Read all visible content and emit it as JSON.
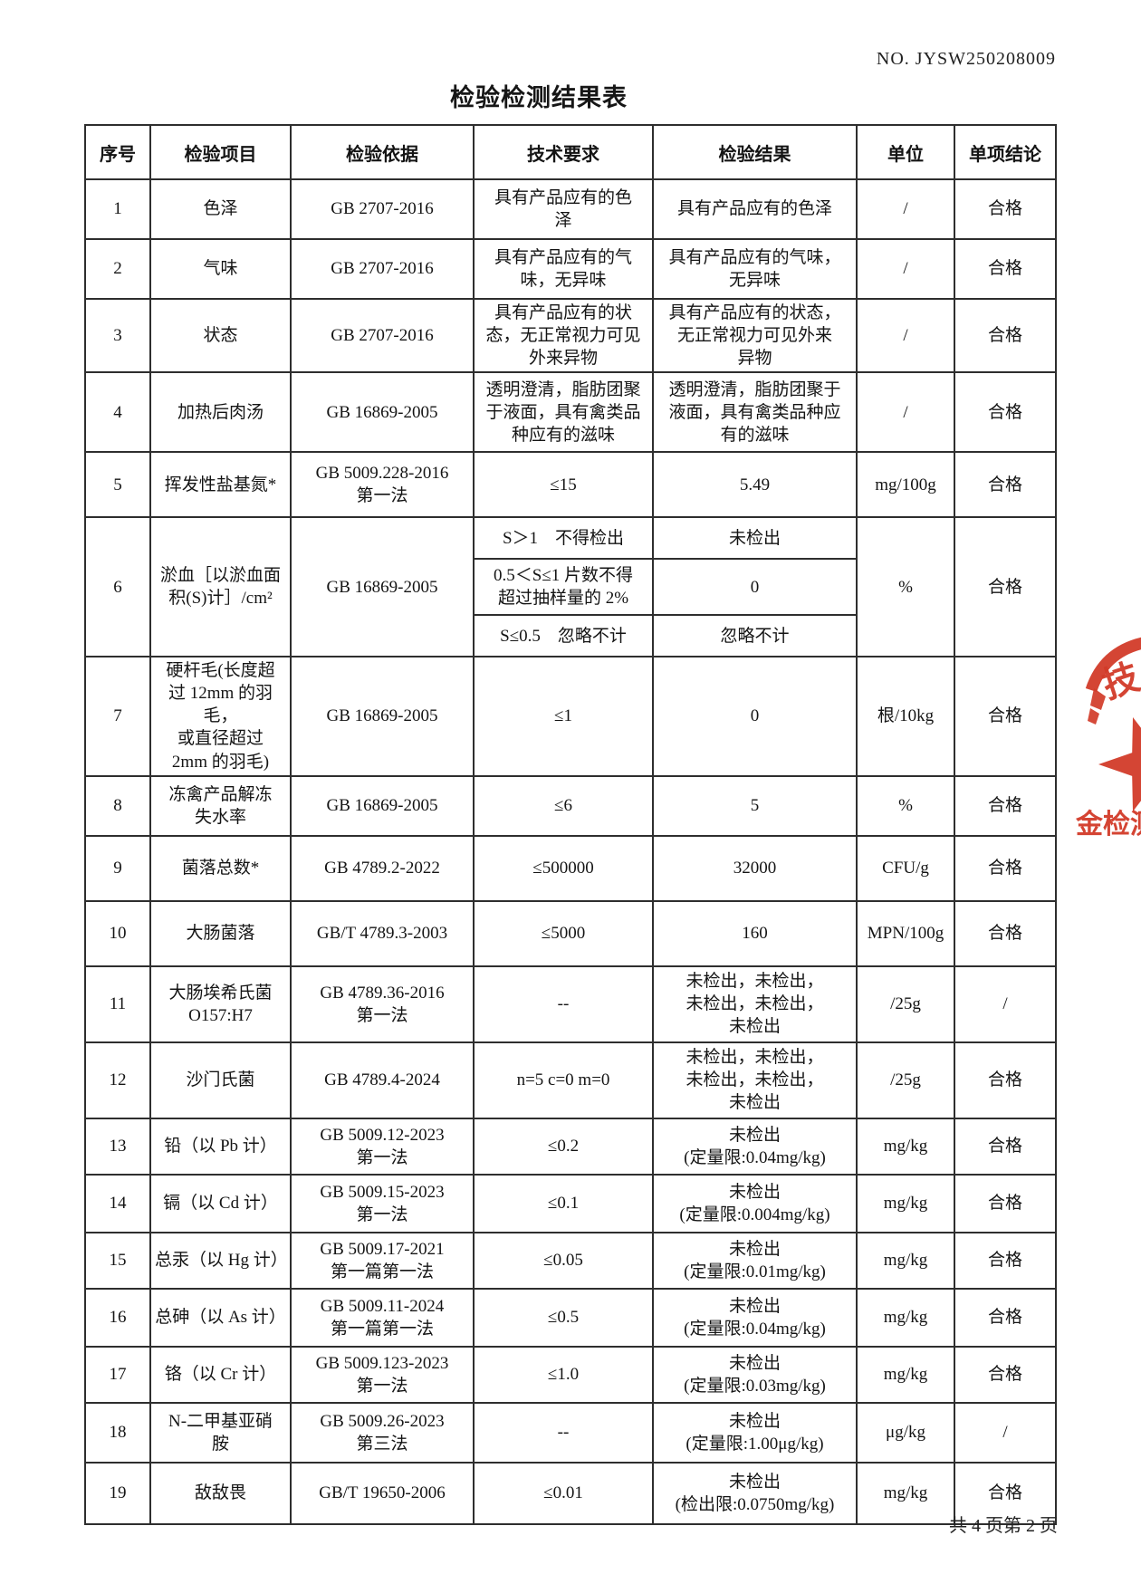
{
  "page": {
    "doc_no": "NO. JYSW250208009",
    "title": "检验检测结果表",
    "footer": "共 4 页第 2 页"
  },
  "table": {
    "headers": [
      "序号",
      "检验项目",
      "检验依据",
      "技术要求",
      "检验结果",
      "单位",
      "单项结论"
    ],
    "rows": [
      {
        "no": "1",
        "item": "色泽",
        "basis": "GB 2707-2016",
        "requirement": "具有产品应有的色\n泽",
        "result": "具有产品应有的色泽",
        "unit": "/",
        "conclusion": "合格"
      },
      {
        "no": "2",
        "item": "气味",
        "basis": "GB 2707-2016",
        "requirement": "具有产品应有的气\n味，无异味",
        "result": "具有产品应有的气味，\n无异味",
        "unit": "/",
        "conclusion": "合格"
      },
      {
        "no": "3",
        "item": "状态",
        "basis": "GB 2707-2016",
        "requirement": "具有产品应有的状\n态，无正常视力可见\n外来异物",
        "result": "具有产品应有的状态，\n无正常视力可见外来\n异物",
        "unit": "/",
        "conclusion": "合格"
      },
      {
        "no": "4",
        "item": "加热后肉汤",
        "basis": "GB 16869-2005",
        "requirement": "透明澄清，脂肪团聚\n于液面，具有禽类品\n种应有的滋味",
        "result": "透明澄清，脂肪团聚于\n液面，具有禽类品种应\n有的滋味",
        "unit": "/",
        "conclusion": "合格"
      },
      {
        "no": "5",
        "item": "挥发性盐基氮*",
        "basis": "GB 5009.228-2016\n第一法",
        "requirement": "≤15",
        "result": "5.49",
        "unit": "mg/100g",
        "conclusion": "合格"
      },
      {
        "no": "6",
        "item": "淤血［以淤血面\n积(S)计］/cm²",
        "basis": "GB 16869-2005",
        "unit": "%",
        "conclusion": "合格",
        "sub_rows": [
          {
            "requirement": "S＞1　不得检出",
            "result": "未检出"
          },
          {
            "requirement": "0.5＜S≤1 片数不得\n超过抽样量的 2%",
            "result": "0"
          },
          {
            "requirement": "S≤0.5　忽略不计",
            "result": "忽略不计"
          }
        ]
      },
      {
        "no": "7",
        "item": "硬杆毛(长度超\n过 12mm 的羽毛，\n或直径超过\n2mm 的羽毛)",
        "basis": "GB 16869-2005",
        "requirement": "≤1",
        "result": "0",
        "unit": "根/10kg",
        "conclusion": "合格"
      },
      {
        "no": "8",
        "item": "冻禽产品解冻\n失水率",
        "basis": "GB 16869-2005",
        "requirement": "≤6",
        "result": "5",
        "unit": "%",
        "conclusion": "合格"
      },
      {
        "no": "9",
        "item": "菌落总数*",
        "basis": "GB 4789.2-2022",
        "requirement": "≤500000",
        "result": "32000",
        "unit": "CFU/g",
        "conclusion": "合格"
      },
      {
        "no": "10",
        "item": "大肠菌落",
        "basis": "GB/T 4789.3-2003",
        "requirement": "≤5000",
        "result": "160",
        "unit": "MPN/100g",
        "conclusion": "合格"
      },
      {
        "no": "11",
        "item": "大肠埃希氏菌\nO157:H7",
        "basis": "GB 4789.36-2016\n第一法",
        "requirement": "--",
        "result": "未检出，未检出，\n未检出，未检出，\n未检出",
        "unit": "/25g",
        "conclusion": "/"
      },
      {
        "no": "12",
        "item": "沙门氏菌",
        "basis": "GB 4789.4-2024",
        "requirement": "n=5  c=0  m=0",
        "result": "未检出，未检出，\n未检出，未检出，\n未检出",
        "unit": "/25g",
        "conclusion": "合格"
      },
      {
        "no": "13",
        "item": "铅（以 Pb 计）",
        "basis": "GB 5009.12-2023\n第一法",
        "requirement": "≤0.2",
        "result": "未检出\n(定量限:0.04mg/kg)",
        "unit": "mg/kg",
        "conclusion": "合格"
      },
      {
        "no": "14",
        "item": "镉（以 Cd 计）",
        "basis": "GB 5009.15-2023\n第一法",
        "requirement": "≤0.1",
        "result": "未检出\n(定量限:0.004mg/kg)",
        "unit": "mg/kg",
        "conclusion": "合格"
      },
      {
        "no": "15",
        "item": "总汞（以 Hg 计）",
        "basis": "GB 5009.17-2021\n第一篇第一法",
        "requirement": "≤0.05",
        "result": "未检出\n(定量限:0.01mg/kg)",
        "unit": "mg/kg",
        "conclusion": "合格"
      },
      {
        "no": "16",
        "item": "总砷（以 As 计）",
        "basis": "GB 5009.11-2024\n第一篇第一法",
        "requirement": "≤0.5",
        "result": "未检出\n(定量限:0.04mg/kg)",
        "unit": "mg/kg",
        "conclusion": "合格"
      },
      {
        "no": "17",
        "item": "铬（以 Cr 计）",
        "basis": "GB 5009.123-2023\n第一法",
        "requirement": "≤1.0",
        "result": "未检出\n(定量限:0.03mg/kg)",
        "unit": "mg/kg",
        "conclusion": "合格"
      },
      {
        "no": "18",
        "item": "N-二甲基亚硝\n胺",
        "basis": "GB 5009.26-2023\n第三法",
        "requirement": "--",
        "result": "未检出\n(定量限:1.00μg/kg)",
        "unit": "μg/kg",
        "conclusion": "/"
      },
      {
        "no": "19",
        "item": "敌敌畏",
        "basis": "GB/T 19650-2006",
        "requirement": "≤0.01",
        "result": "未检出\n(检出限:0.0750mg/kg)",
        "unit": "mg/kg",
        "conclusion": "合格"
      }
    ]
  },
  "stamp": {
    "color": "#d23b29",
    "arc_text": "技",
    "bottom_text": "金检测"
  }
}
